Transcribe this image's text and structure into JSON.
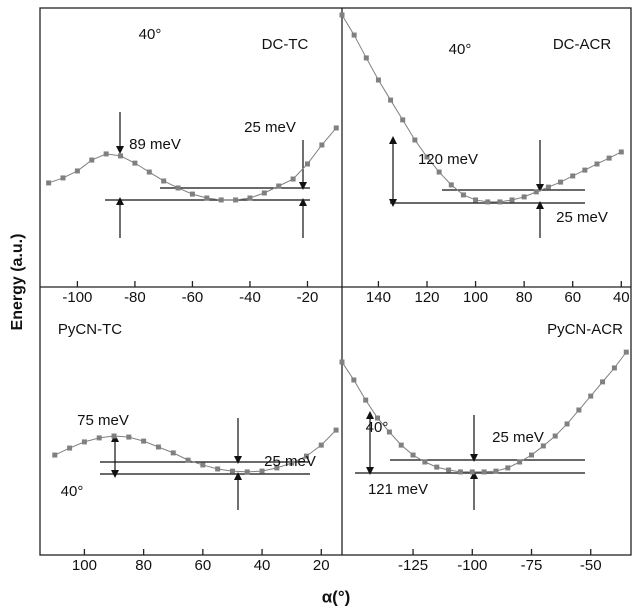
{
  "xlabel": "α(°)",
  "ylabel": "Energy (a.u.)",
  "chart_data": [
    {
      "type": "line",
      "title": "DC-TC",
      "annotations": [
        "40°",
        "89 meV",
        "25 meV"
      ],
      "x": [
        -110,
        -105,
        -100,
        -95,
        -90,
        -85,
        -80,
        -75,
        -70,
        -65,
        -60,
        -55,
        -50,
        -45,
        -40,
        -35,
        -30,
        -25,
        -20,
        -15,
        -10
      ],
      "series": [
        {
          "color": "#808080",
          "values": [
            3.73,
            3.91,
            4.16,
            4.55,
            4.77,
            4.7,
            4.44,
            4.12,
            3.8,
            3.55,
            3.33,
            3.19,
            3.12,
            3.12,
            3.19,
            3.37,
            3.62,
            3.87,
            4.41,
            5.09,
            5.7
          ]
        }
      ],
      "xlim": [
        -113,
        -8
      ],
      "xticks": [
        -100,
        -80,
        -60,
        -40,
        -20
      ],
      "ylim": [
        0,
        10
      ]
    },
    {
      "type": "line",
      "title": "DC-ACR",
      "annotations": [
        "40°",
        "120 meV",
        "25 meV"
      ],
      "x": [
        155,
        150,
        145,
        140,
        135,
        130,
        125,
        120,
        115,
        110,
        105,
        100,
        95,
        90,
        85,
        80,
        75,
        70,
        65,
        60,
        55,
        50,
        45,
        40
      ],
      "series": [
        {
          "color": "#808080",
          "values": [
            9.75,
            9.03,
            8.21,
            7.42,
            6.7,
            5.99,
            5.27,
            4.66,
            4.12,
            3.66,
            3.3,
            3.12,
            3.05,
            3.05,
            3.12,
            3.23,
            3.41,
            3.58,
            3.76,
            3.98,
            4.19,
            4.41,
            4.62,
            4.84
          ]
        }
      ],
      "xlim": [
        155,
        36
      ],
      "xticks": [
        140,
        120,
        100,
        80,
        60,
        40
      ],
      "ylim": [
        0,
        10
      ]
    },
    {
      "type": "line",
      "title": "PyCN-TC",
      "annotations": [
        "75 meV",
        "40°",
        "25 meV"
      ],
      "x": [
        110,
        105,
        100,
        95,
        90,
        85,
        80,
        75,
        70,
        65,
        60,
        55,
        50,
        45,
        40,
        35,
        30,
        25,
        20,
        15
      ],
      "series": [
        {
          "color": "#808080",
          "values": [
            3.73,
            3.99,
            4.22,
            4.37,
            4.44,
            4.4,
            4.25,
            4.03,
            3.81,
            3.54,
            3.36,
            3.21,
            3.13,
            3.1,
            3.13,
            3.25,
            3.43,
            3.69,
            4.1,
            4.66
          ]
        }
      ],
      "xlim": [
        115,
        13
      ],
      "xticks": [
        100,
        80,
        60,
        40,
        20
      ],
      "ylim": [
        0,
        10
      ]
    },
    {
      "type": "line",
      "title": "PyCN-ACR",
      "annotations": [
        "40°",
        "25 meV",
        "121 meV"
      ],
      "x": [
        -155,
        -150,
        -145,
        -140,
        -135,
        -130,
        -125,
        -120,
        -115,
        -110,
        -105,
        -100,
        -95,
        -90,
        -85,
        -80,
        -75,
        -70,
        -65,
        -60,
        -55,
        -50,
        -45,
        -40,
        -35
      ],
      "series": [
        {
          "color": "#808080",
          "values": [
            7.2,
            6.53,
            5.78,
            5.11,
            4.59,
            4.1,
            3.73,
            3.47,
            3.28,
            3.17,
            3.1,
            3.1,
            3.1,
            3.13,
            3.25,
            3.47,
            3.73,
            4.07,
            4.44,
            4.89,
            5.41,
            5.93,
            6.46,
            6.98,
            7.57
          ]
        }
      ],
      "xlim": [
        -155,
        -33
      ],
      "xticks": [
        -125,
        -100,
        -75,
        -50
      ],
      "ylim": [
        0,
        10
      ]
    }
  ]
}
